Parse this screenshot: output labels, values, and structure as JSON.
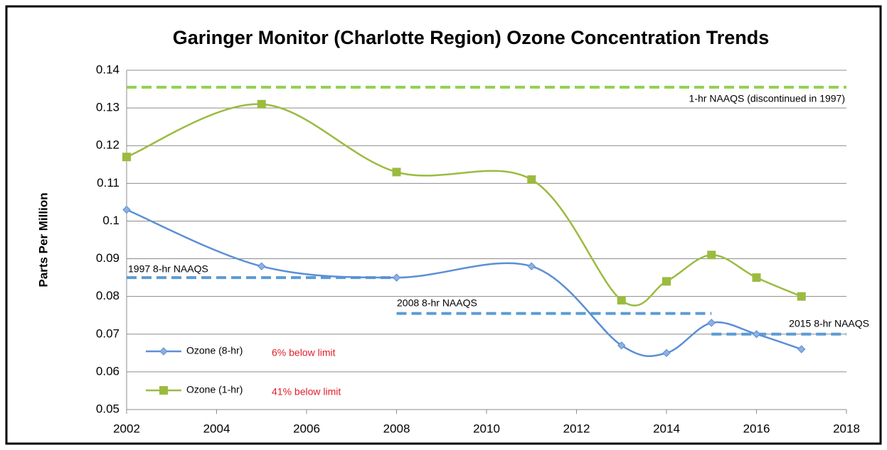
{
  "chart_data": {
    "type": "line",
    "title": "Garinger Monitor (Charlotte Region) Ozone Concentration Trends",
    "y_label": "Parts Per Million",
    "x": [
      2002,
      2005,
      2008,
      2011,
      2013,
      2014,
      2015,
      2016,
      2017
    ],
    "series": [
      {
        "name": "Ozone (8-hr)",
        "color": "#5b8fd4",
        "marker": "diamond",
        "values": [
          0.103,
          0.088,
          0.085,
          0.088,
          0.067,
          0.065,
          0.073,
          0.07,
          0.066
        ]
      },
      {
        "name": "Ozone (1-hr)",
        "color": "#9bbb40",
        "marker": "square",
        "values": [
          0.117,
          0.131,
          0.113,
          0.111,
          0.079,
          0.084,
          0.091,
          0.085,
          0.08
        ]
      }
    ],
    "annotations": [
      {
        "text": "6% below limit",
        "color": "#e0202a"
      },
      {
        "text": "41% below limit",
        "color": "#e0202a"
      }
    ],
    "reference_lines": [
      {
        "label": "1-hr NAAQS (discontinued in 1997)",
        "value": 0.1355,
        "x_start": 2002,
        "x_end": 2018,
        "color": "#92d050"
      },
      {
        "label": "1997 8-hr NAAQS",
        "value": 0.085,
        "x_start": 2002,
        "x_end": 2008,
        "color": "#5b9bd5"
      },
      {
        "label": "2008 8-hr NAAQS",
        "value": 0.0755,
        "x_start": 2008,
        "x_end": 2015,
        "color": "#5b9bd5"
      },
      {
        "label": "2015 8-hr NAAQS",
        "value": 0.07,
        "x_start": 2015,
        "x_end": 2018,
        "color": "#5b9bd5"
      }
    ],
    "xlim": [
      2002,
      2018
    ],
    "xticks": [
      2002,
      2004,
      2006,
      2008,
      2010,
      2012,
      2014,
      2016,
      2018
    ],
    "ylim": [
      0.05,
      0.14
    ],
    "yticks": [
      0.05,
      0.06,
      0.07,
      0.08,
      0.09,
      0.1,
      0.11,
      0.12,
      0.13,
      0.14
    ],
    "grid": true,
    "legend": "lower left"
  }
}
